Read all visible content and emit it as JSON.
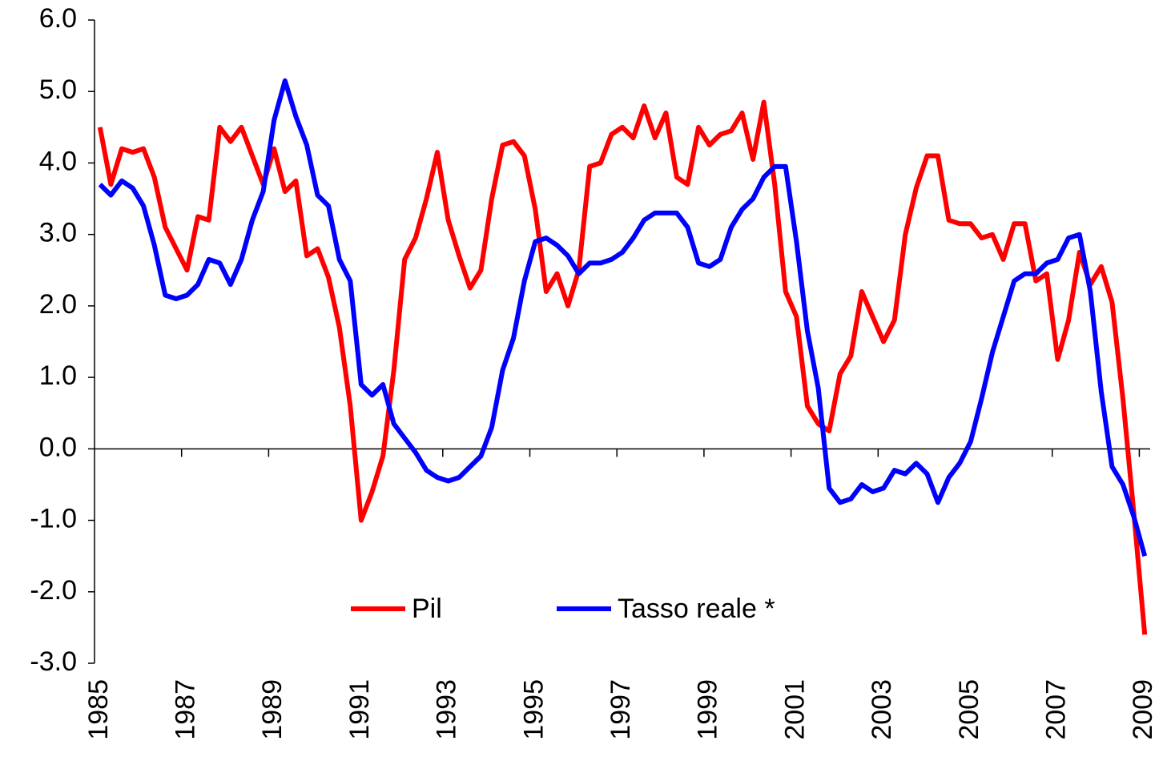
{
  "chart_data": {
    "type": "line",
    "categories": [
      "1985",
      null,
      null,
      null,
      null,
      null,
      null,
      null,
      "1987",
      null,
      null,
      null,
      null,
      null,
      null,
      null,
      "1989",
      null,
      null,
      null,
      null,
      null,
      null,
      null,
      "1991",
      null,
      null,
      null,
      null,
      null,
      null,
      null,
      "1993",
      null,
      null,
      null,
      null,
      null,
      null,
      null,
      "1995",
      null,
      null,
      null,
      null,
      null,
      null,
      null,
      "1997",
      null,
      null,
      null,
      null,
      null,
      null,
      null,
      "1999",
      null,
      null,
      null,
      null,
      null,
      null,
      null,
      "2001",
      null,
      null,
      null,
      null,
      null,
      null,
      null,
      "2003",
      null,
      null,
      null,
      null,
      null,
      null,
      null,
      "2005",
      null,
      null,
      null,
      null,
      null,
      null,
      null,
      "2007",
      null,
      null,
      null,
      null,
      null,
      null,
      null,
      "2009"
    ],
    "series": [
      {
        "name": "Pil",
        "color": "#ff0000",
        "values": [
          4.5,
          3.7,
          4.2,
          4.15,
          4.2,
          3.8,
          3.1,
          2.8,
          2.5,
          3.25,
          3.2,
          4.5,
          4.3,
          4.5,
          4.1,
          3.7,
          4.2,
          3.6,
          3.75,
          2.7,
          2.8,
          2.4,
          1.7,
          0.6,
          -1.0,
          -0.6,
          -0.1,
          1.1,
          2.65,
          2.95,
          3.5,
          4.15,
          3.2,
          2.7,
          2.25,
          2.5,
          3.5,
          4.25,
          4.3,
          4.1,
          3.35,
          2.2,
          2.45,
          2.0,
          2.5,
          3.95,
          4.0,
          4.4,
          4.5,
          4.35,
          4.8,
          4.35,
          4.7,
          3.8,
          3.7,
          4.5,
          4.25,
          4.4,
          4.45,
          4.7,
          4.05,
          4.85,
          3.7,
          2.2,
          1.85,
          0.6,
          0.35,
          0.25,
          1.05,
          1.3,
          2.2,
          1.85,
          1.5,
          1.8,
          3.0,
          3.65,
          4.1,
          4.1,
          3.2,
          3.15,
          3.15,
          2.95,
          3.0,
          2.65,
          3.15,
          3.15,
          2.35,
          2.45,
          1.25,
          1.8,
          2.75,
          2.3,
          2.55,
          2.05,
          0.7,
          -0.9,
          -2.6
        ]
      },
      {
        "name": "Tasso reale *",
        "color": "#0000ff",
        "values": [
          3.7,
          3.55,
          3.75,
          3.65,
          3.4,
          2.85,
          2.15,
          2.1,
          2.15,
          2.3,
          2.65,
          2.6,
          2.3,
          2.65,
          3.2,
          3.6,
          4.6,
          5.15,
          4.65,
          4.25,
          3.55,
          3.4,
          2.65,
          2.35,
          0.9,
          0.75,
          0.9,
          0.35,
          0.15,
          -0.05,
          -0.3,
          -0.4,
          -0.45,
          -0.4,
          -0.25,
          -0.1,
          0.3,
          1.1,
          1.55,
          2.35,
          2.9,
          2.95,
          2.85,
          2.7,
          2.45,
          2.6,
          2.6,
          2.65,
          2.75,
          2.95,
          3.2,
          3.3,
          3.3,
          3.3,
          3.1,
          2.6,
          2.55,
          2.65,
          3.1,
          3.35,
          3.5,
          3.8,
          3.95,
          3.95,
          2.9,
          1.65,
          0.85,
          -0.55,
          -0.75,
          -0.7,
          -0.5,
          -0.6,
          -0.55,
          -0.3,
          -0.35,
          -0.2,
          -0.35,
          -0.75,
          -0.4,
          -0.2,
          0.1,
          0.7,
          1.35,
          1.85,
          2.35,
          2.45,
          2.45,
          2.6,
          2.65,
          2.95,
          3.0,
          2.2,
          0.8,
          -0.25,
          -0.5,
          -0.95,
          -1.5
        ]
      }
    ],
    "ylim": [
      -3,
      6
    ],
    "yticks": [
      {
        "value": -3,
        "label": "-3.0"
      },
      {
        "value": -2,
        "label": "-2.0"
      },
      {
        "value": -1,
        "label": "-1.0"
      },
      {
        "value": 0,
        "label": "0.0"
      },
      {
        "value": 1,
        "label": "1.0"
      },
      {
        "value": 2,
        "label": "2.0"
      },
      {
        "value": 3,
        "label": "3.0"
      },
      {
        "value": 4,
        "label": "4.0"
      },
      {
        "value": 5,
        "label": "5.0"
      },
      {
        "value": 6,
        "label": "6.0"
      }
    ]
  }
}
